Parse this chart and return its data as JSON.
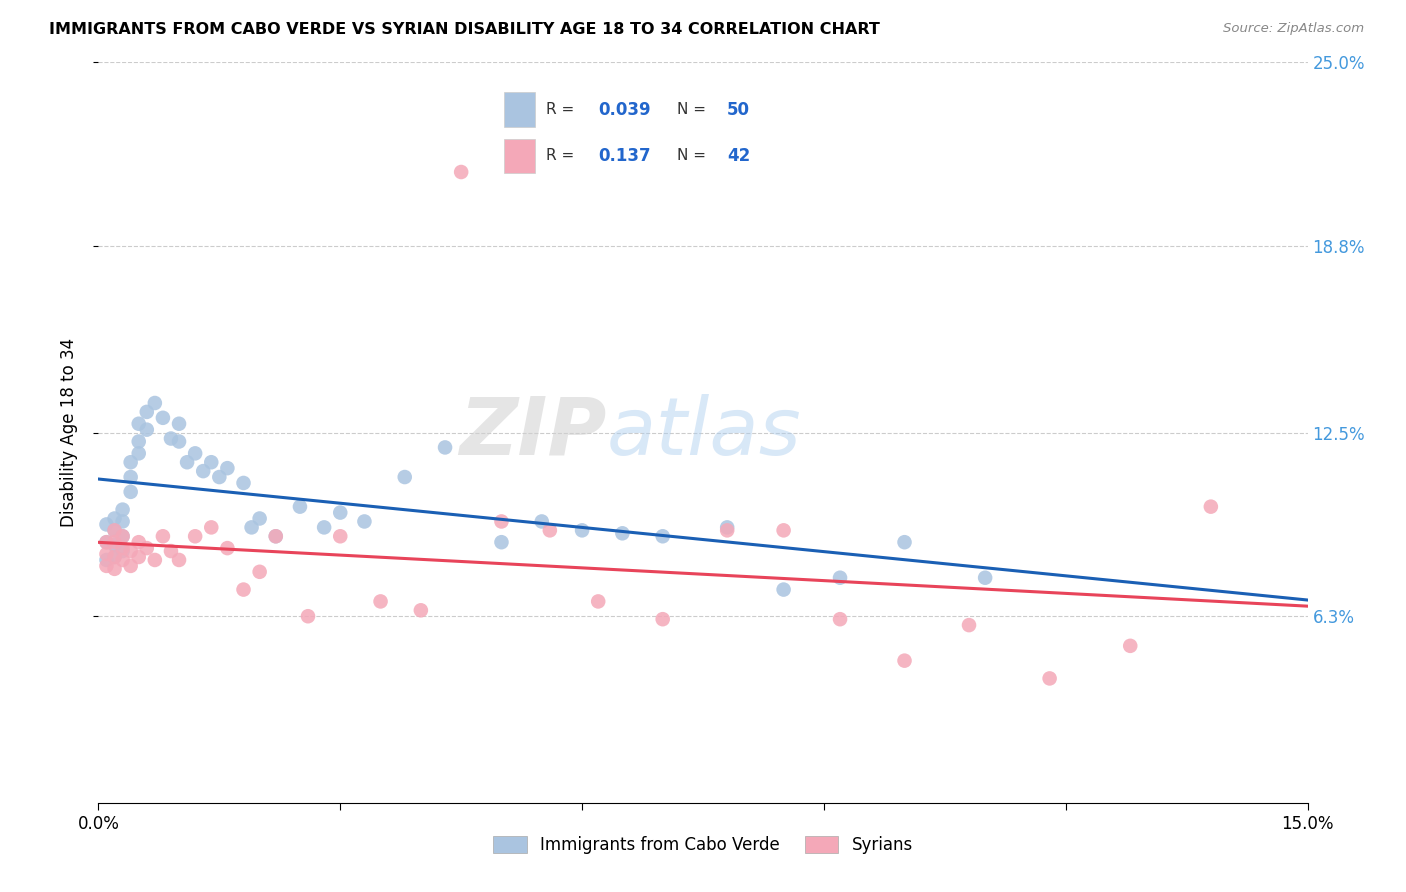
{
  "title": "IMMIGRANTS FROM CABO VERDE VS SYRIAN DISABILITY AGE 18 TO 34 CORRELATION CHART",
  "source": "Source: ZipAtlas.com",
  "ylabel": "Disability Age 18 to 34",
  "xlim": [
    0.0,
    0.15
  ],
  "ylim": [
    0.0,
    0.25
  ],
  "xticks": [
    0.0,
    0.03,
    0.06,
    0.09,
    0.12,
    0.15
  ],
  "xticklabels": [
    "0.0%",
    "",
    "",
    "",
    "",
    "15.0%"
  ],
  "ytick_positions": [
    0.063,
    0.125,
    0.188,
    0.25
  ],
  "ytick_labels": [
    "6.3%",
    "12.5%",
    "18.8%",
    "25.0%"
  ],
  "cabo_verde_R": "0.039",
  "cabo_verde_N": "50",
  "syrian_R": "0.137",
  "syrian_N": "42",
  "cabo_verde_color": "#aac4e0",
  "syrian_color": "#f4a8b8",
  "cabo_verde_line_color": "#1a5fb4",
  "syrian_line_color": "#e8445a",
  "legend_label_1": "Immigrants from Cabo Verde",
  "legend_label_2": "Syrians",
  "cabo_verde_x": [
    0.001,
    0.001,
    0.001,
    0.002,
    0.002,
    0.002,
    0.002,
    0.003,
    0.003,
    0.003,
    0.003,
    0.004,
    0.004,
    0.004,
    0.005,
    0.005,
    0.005,
    0.006,
    0.006,
    0.007,
    0.008,
    0.009,
    0.01,
    0.01,
    0.011,
    0.012,
    0.013,
    0.014,
    0.015,
    0.016,
    0.018,
    0.019,
    0.02,
    0.022,
    0.025,
    0.028,
    0.03,
    0.033,
    0.038,
    0.043,
    0.05,
    0.055,
    0.06,
    0.065,
    0.07,
    0.078,
    0.085,
    0.092,
    0.1,
    0.11
  ],
  "cabo_verde_y": [
    0.094,
    0.088,
    0.082,
    0.096,
    0.092,
    0.087,
    0.083,
    0.099,
    0.095,
    0.09,
    0.085,
    0.115,
    0.11,
    0.105,
    0.128,
    0.122,
    0.118,
    0.132,
    0.126,
    0.135,
    0.13,
    0.123,
    0.128,
    0.122,
    0.115,
    0.118,
    0.112,
    0.115,
    0.11,
    0.113,
    0.108,
    0.093,
    0.096,
    0.09,
    0.1,
    0.093,
    0.098,
    0.095,
    0.11,
    0.12,
    0.088,
    0.095,
    0.092,
    0.091,
    0.09,
    0.093,
    0.072,
    0.076,
    0.088,
    0.076
  ],
  "syrian_x": [
    0.001,
    0.001,
    0.001,
    0.002,
    0.002,
    0.002,
    0.002,
    0.003,
    0.003,
    0.003,
    0.004,
    0.004,
    0.005,
    0.005,
    0.006,
    0.007,
    0.008,
    0.009,
    0.01,
    0.012,
    0.014,
    0.016,
    0.018,
    0.02,
    0.022,
    0.026,
    0.03,
    0.035,
    0.04,
    0.045,
    0.05,
    0.056,
    0.062,
    0.07,
    0.078,
    0.085,
    0.092,
    0.1,
    0.108,
    0.118,
    0.128,
    0.138
  ],
  "syrian_y": [
    0.088,
    0.084,
    0.08,
    0.092,
    0.088,
    0.083,
    0.079,
    0.09,
    0.086,
    0.082,
    0.085,
    0.08,
    0.088,
    0.083,
    0.086,
    0.082,
    0.09,
    0.085,
    0.082,
    0.09,
    0.093,
    0.086,
    0.072,
    0.078,
    0.09,
    0.063,
    0.09,
    0.068,
    0.065,
    0.213,
    0.095,
    0.092,
    0.068,
    0.062,
    0.092,
    0.092,
    0.062,
    0.048,
    0.06,
    0.042,
    0.053,
    0.1
  ]
}
